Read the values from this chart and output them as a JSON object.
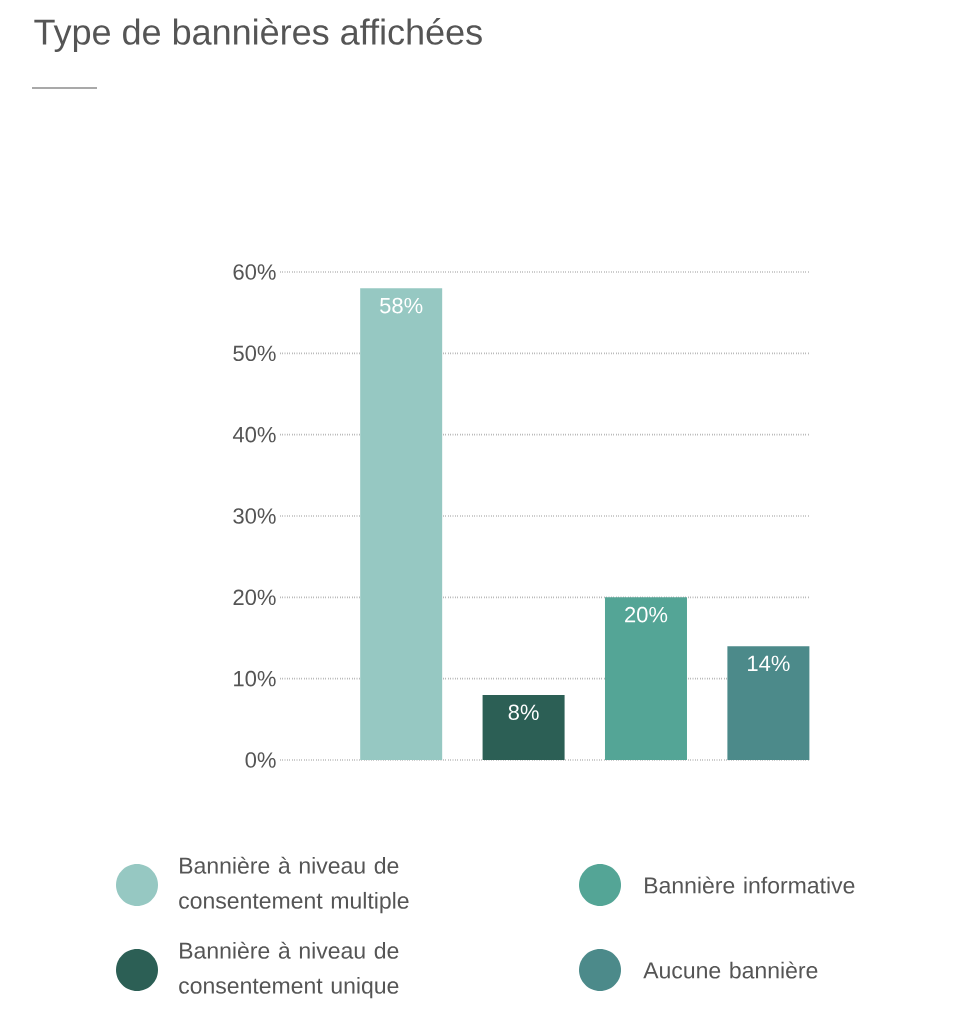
{
  "chart_data": {
    "type": "bar",
    "title": "Type de bannières affichées",
    "categories": [
      null,
      null,
      null,
      null
    ],
    "series": [
      {
        "name": "Bannière à niveau de consentement multiple",
        "color": "#96c8c2",
        "values": [
          58,
          null,
          null,
          null
        ],
        "value_labels": [
          "58%",
          null,
          null,
          null
        ]
      },
      {
        "name": "Bannière à niveau de consentement unique",
        "color": "#2c5f55",
        "values": [
          null,
          8,
          null,
          null
        ],
        "value_labels": [
          null,
          "8%",
          null,
          null
        ]
      },
      {
        "name": "Bannière informative",
        "color": "#54a596",
        "values": [
          null,
          null,
          20,
          null
        ],
        "value_labels": [
          null,
          null,
          "20%",
          null
        ]
      },
      {
        "name": "Aucune bannière",
        "color": "#4c8a8a",
        "values": [
          null,
          null,
          null,
          14
        ],
        "value_labels": [
          null,
          null,
          null,
          "14%"
        ]
      }
    ],
    "ylim": [
      0,
      60
    ],
    "yticks": [
      {
        "value": 0,
        "label": "0%"
      },
      {
        "value": 10,
        "label": "10%"
      },
      {
        "value": 20,
        "label": "20%"
      },
      {
        "value": 30,
        "label": "30%"
      },
      {
        "value": 40,
        "label": "40%"
      },
      {
        "value": 50,
        "label": "50%"
      },
      {
        "value": 60,
        "label": "60%"
      }
    ],
    "grid": "y",
    "legend": "bottom"
  }
}
